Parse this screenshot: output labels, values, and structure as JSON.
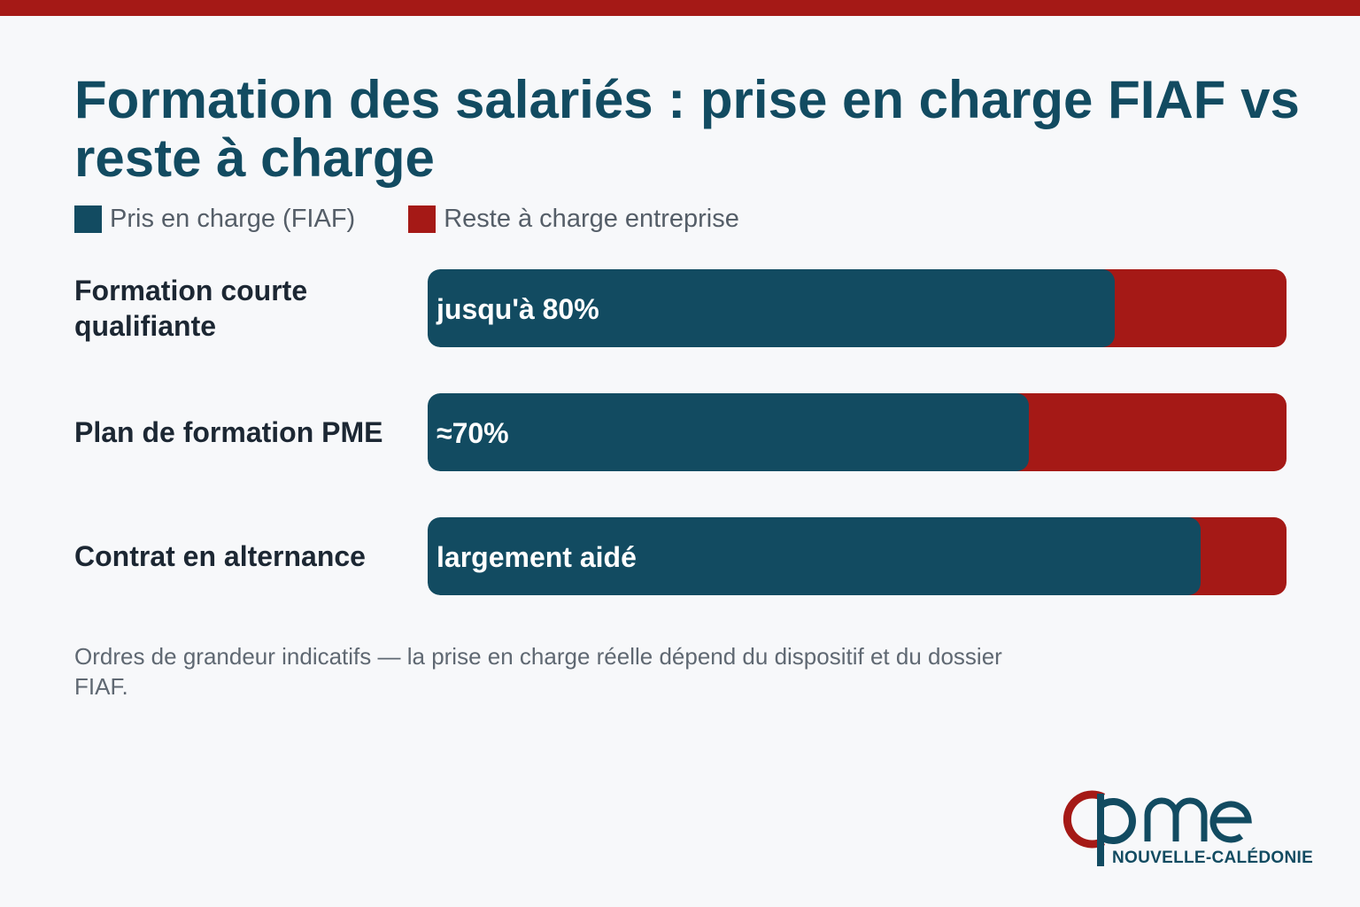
{
  "title": "Formation des salariés : prise en charge FIAF vs reste à charge",
  "colors": {
    "accent_top": "#a51916",
    "covered": "#124b61",
    "rest": "#a51916"
  },
  "legend": [
    {
      "label": "Pris en charge (FIAF)",
      "color": "#124b61"
    },
    {
      "label": "Reste à charge entreprise",
      "color": "#a51916"
    }
  ],
  "chart_data": {
    "type": "bar",
    "orientation": "horizontal",
    "stacked": true,
    "categories": [
      "Formation courte qualifiante",
      "Plan de formation PME",
      "Contrat en alternance"
    ],
    "series": [
      {
        "name": "Pris en charge (FIAF)",
        "values": [
          80,
          70,
          90
        ],
        "data_labels": [
          "jusqu'à 80%",
          "≈70%",
          "largement aidé"
        ]
      },
      {
        "name": "Reste à charge entreprise",
        "values": [
          20,
          30,
          10
        ]
      }
    ],
    "xlim": [
      0,
      100
    ],
    "unit": "%",
    "grid": false,
    "legend_position": "top-left"
  },
  "note": "Ordres de grandeur indicatifs — la prise en charge réelle dépend du dispositif et du dossier FIAF.",
  "logo": {
    "text": "cpme",
    "subtitle": "NOUVELLE-CALÉDONIE"
  }
}
